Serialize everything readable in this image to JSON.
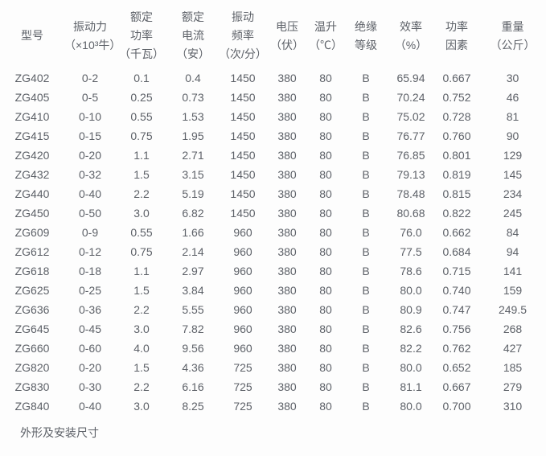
{
  "page": {
    "background_color": "#fdfdfd",
    "text_color": "#5d6168"
  },
  "table": {
    "columns": [
      {
        "id": "model",
        "lines": [
          "型号"
        ]
      },
      {
        "id": "vibration-force",
        "lines": [
          "振动力",
          "（×10³牛）"
        ]
      },
      {
        "id": "rated-power",
        "lines": [
          "额定",
          "功率",
          "（千瓦）"
        ]
      },
      {
        "id": "rated-current",
        "lines": [
          "额定",
          "电流",
          "（安）"
        ]
      },
      {
        "id": "vibration-freq",
        "lines": [
          "振动",
          "频率",
          "（次/分）"
        ]
      },
      {
        "id": "voltage",
        "lines": [
          "电压",
          "（伏）"
        ]
      },
      {
        "id": "temp-rise",
        "lines": [
          "温升",
          "（℃）"
        ]
      },
      {
        "id": "insulation-class",
        "lines": [
          "绝缘",
          "等级"
        ]
      },
      {
        "id": "efficiency",
        "lines": [
          "效率",
          "（%）"
        ]
      },
      {
        "id": "power-factor",
        "lines": [
          "功率",
          "因素"
        ]
      },
      {
        "id": "weight",
        "lines": [
          "重量",
          "（公斤）"
        ]
      }
    ],
    "rows": [
      [
        "ZG402",
        "0-2",
        "0.1",
        "0.4",
        "1450",
        "380",
        "80",
        "B",
        "65.94",
        "0.667",
        "30"
      ],
      [
        "ZG405",
        "0-5",
        "0.25",
        "0.73",
        "1450",
        "380",
        "80",
        "B",
        "70.24",
        "0.752",
        "46"
      ],
      [
        "ZG410",
        "0-10",
        "0.55",
        "1.53",
        "1450",
        "380",
        "80",
        "B",
        "75.02",
        "0.728",
        "81"
      ],
      [
        "ZG415",
        "0-15",
        "0.75",
        "1.95",
        "1450",
        "380",
        "80",
        "B",
        "76.77",
        "0.760",
        "90"
      ],
      [
        "ZG420",
        "0-20",
        "1.1",
        "2.71",
        "1450",
        "380",
        "80",
        "B",
        "76.85",
        "0.801",
        "129"
      ],
      [
        "ZG432",
        "0-32",
        "1.5",
        "3.15",
        "1450",
        "380",
        "80",
        "B",
        "79.13",
        "0.819",
        "145"
      ],
      [
        "ZG440",
        "0-40",
        "2.2",
        "5.19",
        "1450",
        "380",
        "80",
        "B",
        "78.48",
        "0.815",
        "234"
      ],
      [
        "ZG450",
        "0-50",
        "3.0",
        "6.82",
        "1450",
        "380",
        "80",
        "B",
        "80.68",
        "0.822",
        "245"
      ],
      [
        "ZG609",
        "0-9",
        "0.55",
        "1.66",
        "960",
        "380",
        "80",
        "B",
        "76.0",
        "0.662",
        "84"
      ],
      [
        "ZG612",
        "0-12",
        "0.75",
        "2.14",
        "960",
        "380",
        "80",
        "B",
        "77.5",
        "0.684",
        "94"
      ],
      [
        "ZG618",
        "0-18",
        "1.1",
        "2.97",
        "960",
        "380",
        "80",
        "B",
        "78.6",
        "0.715",
        "141"
      ],
      [
        "ZG625",
        "0-25",
        "1.5",
        "3.84",
        "960",
        "380",
        "80",
        "B",
        "80.0",
        "0.740",
        "159"
      ],
      [
        "ZG636",
        "0-36",
        "2.2",
        "5.55",
        "960",
        "380",
        "80",
        "B",
        "80.9",
        "0.747",
        "249.5"
      ],
      [
        "ZG645",
        "0-45",
        "3.0",
        "7.82",
        "960",
        "380",
        "80",
        "B",
        "82.6",
        "0.756",
        "268"
      ],
      [
        "ZG660",
        "0-60",
        "4.0",
        "9.56",
        "960",
        "380",
        "80",
        "B",
        "82.2",
        "0.762",
        "427"
      ],
      [
        "ZG820",
        "0-20",
        "1.5",
        "4.36",
        "725",
        "380",
        "80",
        "B",
        "80.0",
        "0.652",
        "185"
      ],
      [
        "ZG830",
        "0-30",
        "2.2",
        "6.16",
        "725",
        "380",
        "80",
        "B",
        "81.1",
        "0.667",
        "279"
      ],
      [
        "ZG840",
        "0-40",
        "3.0",
        "8.25",
        "725",
        "380",
        "80",
        "B",
        "80.0",
        "0.700",
        "310"
      ]
    ]
  },
  "footer": {
    "label": "外形及安装尺寸"
  }
}
